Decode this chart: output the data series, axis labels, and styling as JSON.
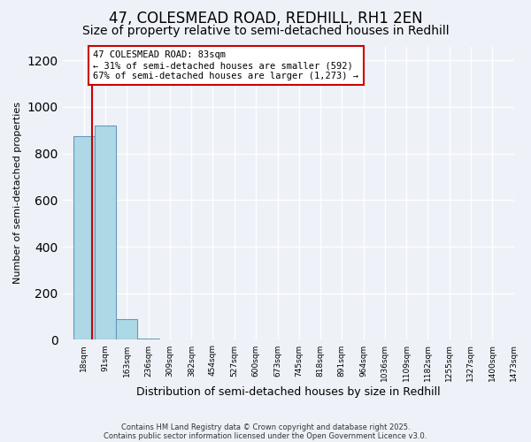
{
  "title": "47, COLESMEAD ROAD, REDHILL, RH1 2EN",
  "subtitle": "Size of property relative to semi-detached houses in Redhill",
  "xlabel": "Distribution of semi-detached houses by size in Redhill",
  "ylabel": "Number of semi-detached properties",
  "bin_labels": [
    "18sqm",
    "91sqm",
    "163sqm",
    "236sqm",
    "309sqm",
    "382sqm",
    "454sqm",
    "527sqm",
    "600sqm",
    "673sqm",
    "745sqm",
    "818sqm",
    "891sqm",
    "964sqm",
    "1036sqm",
    "1109sqm",
    "1182sqm",
    "1255sqm",
    "1327sqm",
    "1400sqm",
    "1473sqm"
  ],
  "bin_edges": [
    18,
    91,
    163,
    236,
    309,
    382,
    454,
    527,
    600,
    673,
    745,
    818,
    891,
    964,
    1036,
    1109,
    1182,
    1255,
    1327,
    1400,
    1473
  ],
  "bar_heights": [
    875,
    920,
    90,
    5,
    0,
    0,
    0,
    0,
    0,
    0,
    0,
    0,
    0,
    0,
    0,
    0,
    0,
    0,
    0,
    0
  ],
  "bar_color": "#add8e6",
  "bar_edgecolor": "#6699bb",
  "property_size": 83,
  "property_label": "47 COLESMEAD ROAD: 83sqm",
  "pct_smaller": 31,
  "count_smaller": 592,
  "pct_larger": 67,
  "count_larger": 1273,
  "vline_color": "#cc0000",
  "annotation_box_color": "#cc0000",
  "ylim": [
    0,
    1260
  ],
  "yticks": [
    0,
    200,
    400,
    600,
    800,
    1000,
    1200
  ],
  "background_color": "#eef2f8",
  "footer_line1": "Contains HM Land Registry data © Crown copyright and database right 2025.",
  "footer_line2": "Contains public sector information licensed under the Open Government Licence v3.0.",
  "title_fontsize": 12,
  "subtitle_fontsize": 10
}
